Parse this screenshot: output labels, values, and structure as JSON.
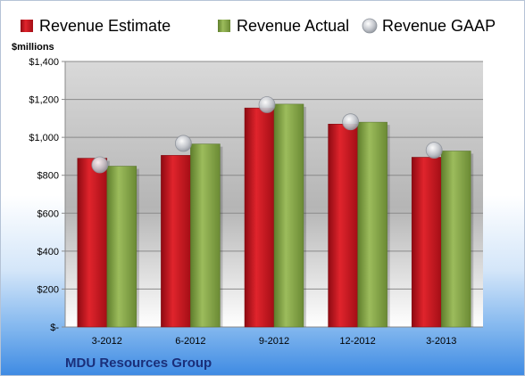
{
  "chart_data": {
    "type": "bar",
    "categories": [
      "3-2012",
      "6-2012",
      "9-2012",
      "12-2012",
      "3-2013"
    ],
    "series": [
      {
        "name": "Revenue Estimate",
        "values": [
          890,
          905,
          1155,
          1070,
          895
        ]
      },
      {
        "name": "Revenue Actual",
        "values": [
          848,
          965,
          1175,
          1080,
          928
        ]
      },
      {
        "name": "Revenue GAAP",
        "values": [
          855,
          968,
          1172,
          1082,
          932
        ]
      }
    ],
    "yunit": "$millions",
    "ylim": [
      0,
      1400
    ],
    "yticks": [
      0,
      200,
      400,
      600,
      800,
      1000,
      1200,
      1400
    ],
    "ytick_labels": [
      "$-",
      "$200",
      "$400",
      "$600",
      "$800",
      "$1,000",
      "$1,200",
      "$1,400"
    ],
    "grid": true,
    "legend_position": "top",
    "colors": {
      "estimate": "#c8141e",
      "actual": "#86a84a",
      "gaap": "#b8bcc4"
    }
  },
  "footer": {
    "company": "MDU Resources Group"
  }
}
